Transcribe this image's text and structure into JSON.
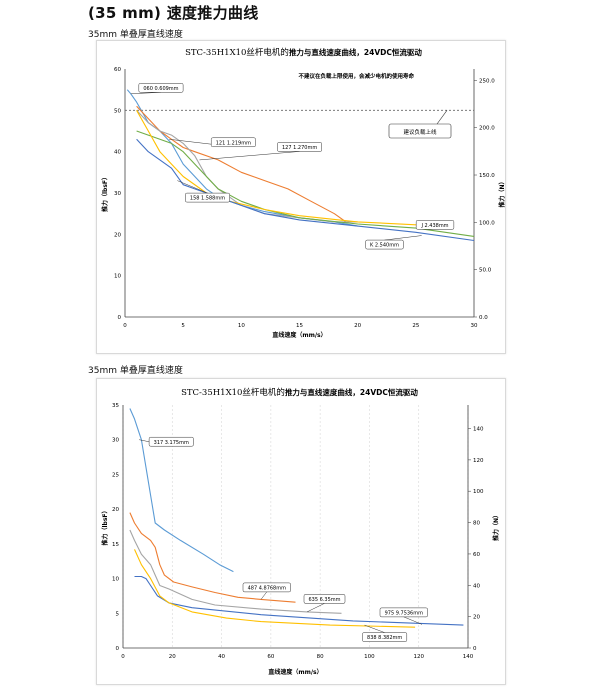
{
  "page": {
    "title": "(35 mm) 速度推力曲线"
  },
  "colors": {
    "blue": "#4472c4",
    "orange": "#ed7d31",
    "gray": "#a5a5a5",
    "yellow": "#ffc000",
    "lightblue": "#5b9bd5",
    "green": "#70ad47"
  },
  "chart_data": [
    {
      "type": "line",
      "section_title": "35mm 单叠厚直线速度",
      "title_prefix": "STC-35H1X10丝杆电机的",
      "title_suffix": "推力与直线速度曲线，24VDC恒流驱动",
      "xlabel": "直线速度（mm/s）",
      "ylabel": "推力（lbsF）",
      "y2label": "推力（N）",
      "xlim": [
        0,
        30
      ],
      "ylim": [
        0,
        60
      ],
      "x_ticks": [
        "0",
        "5",
        "10",
        "15",
        "20",
        "25",
        "30"
      ],
      "y_ticks": [
        "0",
        "10",
        "20",
        "30",
        "40",
        "50",
        "60"
      ],
      "y2_ticks": [
        "0.0",
        "50.0",
        "100.0",
        "150.0",
        "200.0",
        "250.0"
      ],
      "note": "不建议在负载上限使用，会减少电机的使用寿命",
      "limit_label": "建议负载上线",
      "limit_value": 50,
      "series": [
        {
          "color": "#5b9bd5",
          "points": [
            [
              0.2,
              55
            ],
            [
              0.5,
              54
            ],
            [
              1,
              52
            ],
            [
              2,
              47
            ],
            [
              3,
              45
            ],
            [
              4,
              42
            ],
            [
              5,
              37
            ],
            [
              6,
              34
            ],
            [
              7,
              31
            ],
            [
              8,
              29
            ],
            [
              9,
              28
            ],
            [
              10,
              27
            ],
            [
              12,
              25.5
            ],
            [
              15,
              24
            ],
            [
              18,
              23
            ],
            [
              20,
              22
            ]
          ]
        },
        {
          "color": "#ed7d31",
          "points": [
            [
              1,
              51
            ],
            [
              2,
              48
            ],
            [
              3,
              45
            ],
            [
              4,
              43
            ],
            [
              5,
              41
            ],
            [
              6,
              40
            ],
            [
              8,
              38
            ],
            [
              10,
              35
            ],
            [
              12,
              33
            ],
            [
              14,
              31
            ],
            [
              16,
              28
            ],
            [
              18,
              25
            ],
            [
              19,
              23
            ]
          ]
        },
        {
          "color": "#a5a5a5",
          "points": [
            [
              1,
              50
            ],
            [
              2,
              47
            ],
            [
              3,
              45
            ],
            [
              4,
              44
            ],
            [
              5,
              42
            ],
            [
              6,
              39
            ],
            [
              7,
              34
            ],
            [
              8,
              31
            ],
            [
              10,
              27
            ],
            [
              12,
              25
            ],
            [
              15,
              24
            ],
            [
              18,
              23
            ],
            [
              20,
              23
            ]
          ]
        },
        {
          "color": "#70ad47",
          "points": [
            [
              1,
              45
            ],
            [
              2,
              44
            ],
            [
              4,
              42
            ],
            [
              5,
              40
            ],
            [
              6,
              37
            ],
            [
              8,
              31
            ],
            [
              10,
              28
            ],
            [
              12,
              26
            ],
            [
              15,
              24
            ],
            [
              20,
              22.5
            ],
            [
              25,
              21.5
            ],
            [
              30,
              19.5
            ]
          ]
        },
        {
          "color": "#ffc000",
          "points": [
            [
              1,
              50
            ],
            [
              2,
              45
            ],
            [
              3,
              40
            ],
            [
              4,
              37
            ],
            [
              5,
              34
            ],
            [
              7,
              30
            ],
            [
              9,
              28
            ],
            [
              12,
              26
            ],
            [
              15,
              24.5
            ],
            [
              20,
              23
            ],
            [
              25,
              22.3
            ],
            [
              26.5,
              22
            ]
          ]
        },
        {
          "color": "#4472c4",
          "points": [
            [
              1,
              43
            ],
            [
              2,
              40
            ],
            [
              3,
              38
            ],
            [
              4,
              36
            ],
            [
              5,
              32
            ],
            [
              6,
              31
            ],
            [
              8,
              29
            ],
            [
              10,
              27
            ],
            [
              12,
              25
            ],
            [
              15,
              23.5
            ],
            [
              20,
              22
            ],
            [
              25,
              20.5
            ],
            [
              30,
              18.5
            ]
          ]
        }
      ],
      "callouts": [
        {
          "text": "060 0.609mm",
          "at": [
            0.5,
            54
          ]
        },
        {
          "text": "121 1.219mm",
          "at": [
            3.8,
            43
          ]
        },
        {
          "text": "127 1.270mm",
          "at": [
            6.4,
            38
          ]
        },
        {
          "text": "158 1.588mm",
          "at": [
            4.5,
            33
          ]
        },
        {
          "text": "J 2.438mm",
          "at": [
            25.2,
            22.3
          ]
        },
        {
          "text": "K 2.540mm",
          "at": [
            25.5,
            19.7
          ]
        }
      ]
    },
    {
      "type": "line",
      "section_title": "35mm 单叠厚直线速度",
      "title_prefix": "STC-35H1X10丝杆电机的",
      "title_suffix": "推力与直线速度曲线，24VDC恒流驱动",
      "xlabel": "直线速度（mm/s）",
      "ylabel": "推力（lbsF）",
      "y2label": "推力（N）",
      "xlim": [
        0,
        150
      ],
      "ylim": [
        0,
        35
      ],
      "x_ticks": [
        "0",
        "20",
        "40",
        "60",
        "80",
        "100",
        "120",
        "140"
      ],
      "y_ticks": [
        "0",
        "5",
        "10",
        "15",
        "20",
        "25",
        "30",
        "35"
      ],
      "y2_ticks": [
        "0",
        "20",
        "40",
        "60",
        "80",
        "100",
        "120",
        "140"
      ],
      "series": [
        {
          "color": "#5b9bd5",
          "points": [
            [
              3,
              34.5
            ],
            [
              5,
              33
            ],
            [
              7,
              31
            ],
            [
              8,
              30
            ],
            [
              10,
              26
            ],
            [
              12,
              22
            ],
            [
              14,
              18
            ],
            [
              18,
              17
            ],
            [
              25,
              15.5
            ],
            [
              35,
              13.5
            ],
            [
              42,
              12
            ],
            [
              48,
              11
            ]
          ]
        },
        {
          "color": "#ed7d31",
          "points": [
            [
              3,
              19.5
            ],
            [
              5,
              18
            ],
            [
              8,
              16.5
            ],
            [
              12,
              15.5
            ],
            [
              14,
              14.5
            ],
            [
              16,
              12
            ],
            [
              18,
              10.5
            ],
            [
              22,
              9.5
            ],
            [
              30,
              8.8
            ],
            [
              40,
              8
            ],
            [
              50,
              7.3
            ],
            [
              60,
              7
            ],
            [
              75,
              6.6
            ]
          ]
        },
        {
          "color": "#a5a5a5",
          "points": [
            [
              3,
              17
            ],
            [
              5,
              15.5
            ],
            [
              8,
              13.5
            ],
            [
              12,
              12
            ],
            [
              14,
              10.5
            ],
            [
              16,
              9
            ],
            [
              20,
              8.5
            ],
            [
              30,
              7
            ],
            [
              40,
              6.2
            ],
            [
              60,
              5.6
            ],
            [
              80,
              5.2
            ],
            [
              95,
              5
            ]
          ]
        },
        {
          "color": "#4472c4",
          "points": [
            [
              5,
              10.3
            ],
            [
              8,
              10.3
            ],
            [
              10,
              10
            ],
            [
              12,
              9
            ],
            [
              15,
              7.5
            ],
            [
              20,
              6.5
            ],
            [
              30,
              5.8
            ],
            [
              60,
              4.8
            ],
            [
              100,
              3.9
            ],
            [
              148,
              3.3
            ]
          ]
        },
        {
          "color": "#ffc000",
          "points": [
            [
              5,
              14.2
            ],
            [
              8,
              12
            ],
            [
              12,
              10
            ],
            [
              16,
              7.5
            ],
            [
              20,
              6.5
            ],
            [
              30,
              5.2
            ],
            [
              45,
              4.3
            ],
            [
              60,
              3.8
            ],
            [
              90,
              3.3
            ],
            [
              127,
              3
            ]
          ]
        }
      ],
      "callouts": [
        {
          "text": "317 3.175mm",
          "at": [
            7,
            30
          ]
        },
        {
          "text": "487 4.8768mm",
          "at": [
            60,
            7
          ]
        },
        {
          "text": "635 6.35mm",
          "at": [
            80,
            5.2
          ]
        },
        {
          "text": "975 9.7536mm",
          "at": [
            130,
            3.4
          ]
        },
        {
          "text": "838 8.382mm",
          "at": [
            105,
            3.3
          ]
        }
      ]
    }
  ]
}
